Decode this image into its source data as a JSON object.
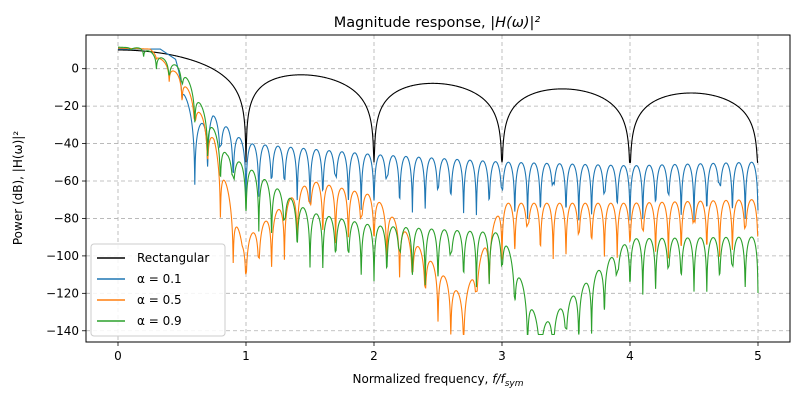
{
  "chart_data": {
    "type": "line",
    "title_prefix": "Magnitude response, ",
    "title_math": "|H(ω)|²",
    "xlabel_prefix": "Normalized frequency, ",
    "xlabel_math": "f/f",
    "xlabel_sub": "sym",
    "ylabel": "Power (dB), |H(ω)|²",
    "xlim": [
      -0.25,
      5.25
    ],
    "ylim": [
      -146,
      18
    ],
    "xticks": [
      0,
      1,
      2,
      3,
      4,
      5
    ],
    "yticks": [
      0,
      -20,
      -40,
      -60,
      -80,
      -100,
      -120,
      -140
    ],
    "grid": true,
    "legend_position": "lower-left",
    "series": [
      {
        "name": "Rectangular",
        "color": "#000000",
        "nulls": [
          1,
          2,
          3,
          4
        ],
        "null_depth": [
          -50,
          -50,
          -50,
          -50
        ],
        "end_value": -46,
        "points": [
          [
            0,
            10
          ],
          [
            0.5,
            6
          ],
          [
            0.9,
            -12
          ],
          [
            1.0,
            -50
          ],
          [
            1.42,
            -3
          ],
          [
            2.0,
            -50
          ],
          [
            2.47,
            -7
          ],
          [
            3.0,
            -50
          ],
          [
            3.48,
            -10
          ],
          [
            4.0,
            -50
          ],
          [
            4.49,
            -12
          ],
          [
            5.0,
            -46
          ]
        ]
      },
      {
        "name": "α = 0.1",
        "color": "#1f77b4",
        "points": [
          [
            0,
            10.5
          ],
          [
            0.33,
            10.5
          ],
          [
            0.45,
            5
          ],
          [
            0.6,
            -32
          ],
          [
            0.74,
            -25
          ],
          [
            1.0,
            -40
          ],
          [
            2.0,
            -46
          ],
          [
            3.0,
            -50
          ],
          [
            4.0,
            -52
          ],
          [
            5.0,
            -50
          ]
        ]
      },
      {
        "name": "α = 0.5",
        "color": "#ff7f0e",
        "points": [
          [
            0,
            11
          ],
          [
            0.25,
            10.5
          ],
          [
            0.5,
            -5
          ],
          [
            0.75,
            -38
          ],
          [
            0.97,
            -93
          ],
          [
            1.5,
            -60
          ],
          [
            2.0,
            -68
          ],
          [
            2.7,
            -123
          ],
          [
            3.0,
            -72
          ],
          [
            4.0,
            -72
          ],
          [
            5.0,
            -70
          ]
        ]
      },
      {
        "name": "α = 0.9",
        "color": "#2ca02c",
        "points": [
          [
            0,
            11.5
          ],
          [
            0.2,
            11
          ],
          [
            0.5,
            0
          ],
          [
            0.85,
            -46
          ],
          [
            1.0,
            -52
          ],
          [
            1.5,
            -77
          ],
          [
            2.0,
            -84
          ],
          [
            3.0,
            -88
          ],
          [
            3.3,
            -139
          ],
          [
            4.0,
            -91
          ],
          [
            5.0,
            -90
          ]
        ]
      }
    ]
  }
}
